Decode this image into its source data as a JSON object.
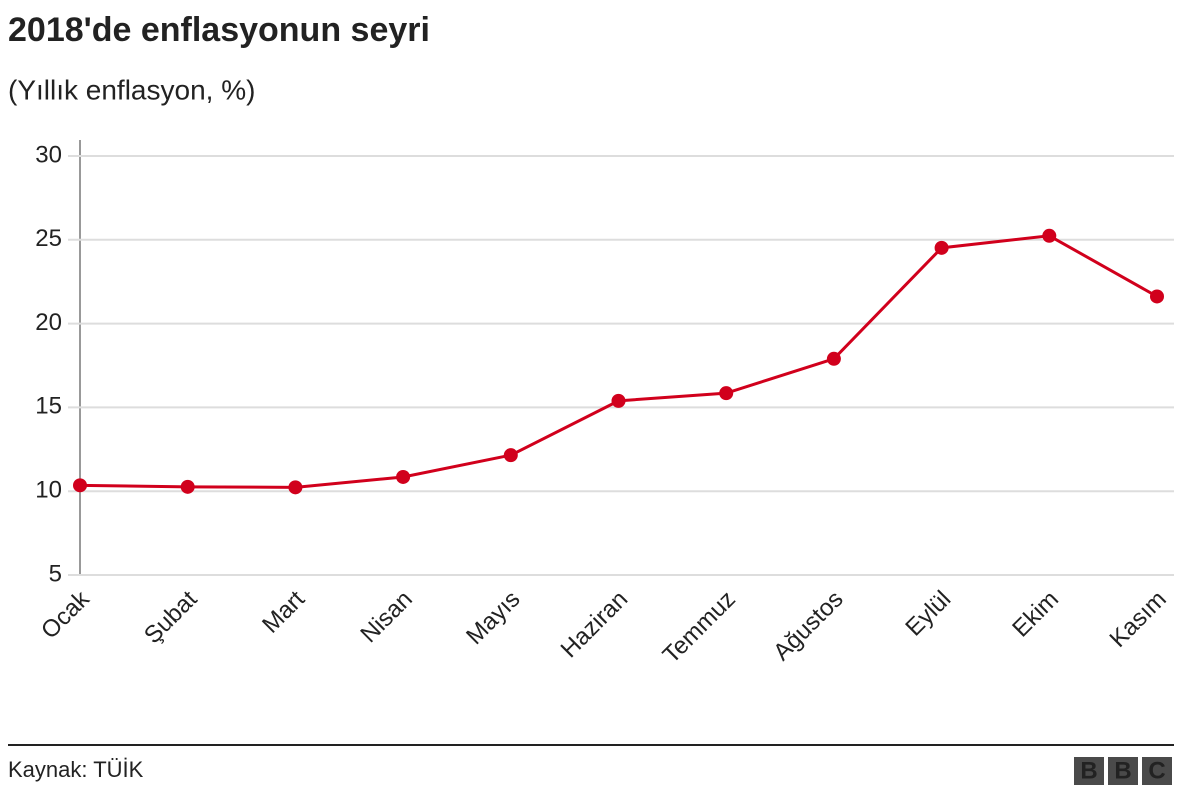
{
  "chart_data": {
    "type": "line",
    "title": "2018'de enflasyonun seyri",
    "subtitle": "(Yıllık enflasyon, %)",
    "categories": [
      "Ocak",
      "Şubat",
      "Mart",
      "Nisan",
      "Mayıs",
      "Haziran",
      "Temmuz",
      "Ağustos",
      "Eylül",
      "Ekim",
      "Kasım"
    ],
    "values": [
      10.35,
      10.26,
      10.23,
      10.85,
      12.15,
      15.39,
      15.85,
      17.9,
      24.52,
      25.24,
      21.62
    ],
    "color": "#d1001c",
    "ylim": [
      5,
      30
    ],
    "yticks": [
      5,
      10,
      15,
      20,
      25,
      30
    ],
    "grid": true
  },
  "source": "Kaynak: TÜİK",
  "logo": [
    "B",
    "B",
    "C"
  ]
}
